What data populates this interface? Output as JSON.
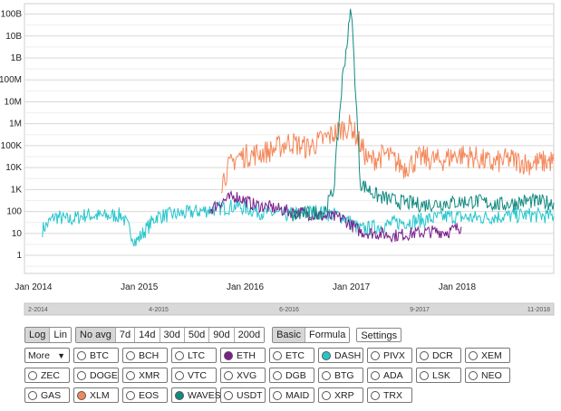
{
  "chart_data": {
    "type": "line",
    "title": "",
    "xlabel": "",
    "ylabel": "",
    "y_scale": "log",
    "ylim": [
      0.15,
      300000000000
    ],
    "xlim": [
      "2013-12-01",
      "2018-11-30"
    ],
    "grid": true,
    "y_tick_labels": [
      "100B",
      "10B",
      "1B",
      "100M",
      "10M",
      "1M",
      "100K",
      "10K",
      "1K",
      "100",
      "10",
      "1"
    ],
    "y_tick_values": [
      100000000000,
      10000000000,
      1000000000,
      100000000,
      10000000,
      1000000,
      100000,
      10000,
      1000,
      100,
      10,
      1
    ],
    "x_tick_labels": [
      "Jan 2014",
      "Jan 2015",
      "Jan 2016",
      "Jan 2017",
      "Jan 2018"
    ],
    "x_tick_values": [
      "2014-01-01",
      "2015-01-01",
      "2016-01-01",
      "2017-01-01",
      "2018-01-01"
    ],
    "series": [
      {
        "name": "DASH",
        "color": "#26c6cc",
        "x": [
          "2014-02-01",
          "2014-03-15",
          "2014-05-01",
          "2014-07-01",
          "2014-09-01",
          "2014-11-01",
          "2014-12-20",
          "2015-03-01",
          "2015-06-01",
          "2015-09-01",
          "2015-12-01",
          "2016-03-01",
          "2016-06-01",
          "2016-09-01",
          "2016-12-01",
          "2017-02-01",
          "2017-04-01",
          "2017-06-01",
          "2017-09-01",
          "2017-12-01",
          "2018-03-01",
          "2018-06-01",
          "2018-09-01",
          "2018-11-30"
        ],
        "y": [
          15,
          60,
          40,
          70,
          60,
          70,
          4,
          60,
          80,
          120,
          180,
          90,
          70,
          100,
          60,
          15,
          20,
          30,
          40,
          60,
          50,
          60,
          70,
          60
        ]
      },
      {
        "name": "ETH",
        "color": "#7a1f8c",
        "x": [
          "2015-09-01",
          "2015-10-15",
          "2015-12-01",
          "2016-02-01",
          "2016-04-01",
          "2016-06-01",
          "2016-08-01",
          "2016-10-01",
          "2016-12-01",
          "2017-02-01",
          "2017-04-01",
          "2017-06-01",
          "2017-08-01",
          "2017-10-01",
          "2017-12-01",
          "2018-01-15"
        ],
        "y": [
          120,
          300,
          500,
          200,
          150,
          100,
          80,
          60,
          50,
          12,
          10,
          8,
          10,
          12,
          12,
          20
        ]
      },
      {
        "name": "XLM",
        "color": "#f4875a",
        "x": [
          "2015-10-10",
          "2015-11-01",
          "2015-12-01",
          "2016-02-01",
          "2016-04-01",
          "2016-06-01",
          "2016-08-01",
          "2016-10-01",
          "2016-12-01",
          "2017-01-01",
          "2017-03-01",
          "2017-05-01",
          "2017-07-01",
          "2017-09-01",
          "2017-11-01",
          "2018-01-01",
          "2018-03-01",
          "2018-05-01",
          "2018-07-01",
          "2018-09-01",
          "2018-11-30"
        ],
        "y": [
          2000,
          8000,
          30000,
          40000,
          60000,
          150000,
          80000,
          200000,
          600000,
          800000,
          20000,
          40000,
          10000,
          30000,
          20000,
          40000,
          30000,
          15000,
          25000,
          15000,
          20000
        ]
      },
      {
        "name": "WAVES",
        "color": "#128a80",
        "x": [
          "2016-06-01",
          "2016-08-01",
          "2016-10-01",
          "2016-11-01",
          "2016-12-01",
          "2017-01-01",
          "2017-02-01",
          "2017-04-01",
          "2017-06-01",
          "2017-09-01",
          "2017-12-01",
          "2018-03-01",
          "2018-06-01",
          "2018-09-01",
          "2018-11-30"
        ],
        "y": [
          60,
          80,
          100,
          1000,
          100000000,
          200000000000,
          2000,
          500,
          300,
          200,
          250,
          300,
          200,
          300,
          250
        ]
      }
    ]
  },
  "navigator": {
    "labels": [
      "2-2014",
      "4-2015",
      "6-2016",
      "9-2017",
      "11-2018"
    ]
  },
  "controls": {
    "scale": [
      {
        "label": "Log",
        "active": true
      },
      {
        "label": "Lin",
        "active": false
      }
    ],
    "averages": [
      {
        "label": "No avg",
        "active": true
      },
      {
        "label": "7d",
        "active": false
      },
      {
        "label": "14d",
        "active": false
      },
      {
        "label": "30d",
        "active": false
      },
      {
        "label": "50d",
        "active": false
      },
      {
        "label": "90d",
        "active": false
      },
      {
        "label": "200d",
        "active": false
      }
    ],
    "modes": [
      {
        "label": "Basic",
        "active": true
      },
      {
        "label": "Formula",
        "active": false
      }
    ],
    "settings_label": "Settings",
    "more_label": "More",
    "more_arrow": "▼"
  },
  "coins": [
    [
      {
        "label": "BTC",
        "color": "#ffffff"
      },
      {
        "label": "BCH",
        "color": "#ffffff"
      },
      {
        "label": "LTC",
        "color": "#ffffff"
      },
      {
        "label": "ETH",
        "color": "#7a1f8c"
      },
      {
        "label": "ETC",
        "color": "#ffffff"
      },
      {
        "label": "DASH",
        "color": "#26c6cc"
      },
      {
        "label": "PIVX",
        "color": "#ffffff"
      },
      {
        "label": "DCR",
        "color": "#ffffff"
      },
      {
        "label": "XEM",
        "color": "#ffffff"
      }
    ],
    [
      {
        "label": "ZEC",
        "color": "#ffffff"
      },
      {
        "label": "DOGE",
        "color": "#ffffff"
      },
      {
        "label": "XMR",
        "color": "#ffffff"
      },
      {
        "label": "VTC",
        "color": "#ffffff"
      },
      {
        "label": "XVG",
        "color": "#ffffff"
      },
      {
        "label": "DGB",
        "color": "#ffffff"
      },
      {
        "label": "BTG",
        "color": "#ffffff"
      },
      {
        "label": "ADA",
        "color": "#ffffff"
      },
      {
        "label": "LSK",
        "color": "#ffffff"
      },
      {
        "label": "NEO",
        "color": "#ffffff"
      }
    ],
    [
      {
        "label": "GAS",
        "color": "#ffffff"
      },
      {
        "label": "XLM",
        "color": "#f4875a"
      },
      {
        "label": "EOS",
        "color": "#ffffff"
      },
      {
        "label": "WAVES",
        "color": "#128a80"
      },
      {
        "label": "USDT",
        "color": "#ffffff"
      },
      {
        "label": "MAID",
        "color": "#ffffff"
      },
      {
        "label": "XRP",
        "color": "#ffffff"
      },
      {
        "label": "TRX",
        "color": "#ffffff"
      }
    ]
  ]
}
